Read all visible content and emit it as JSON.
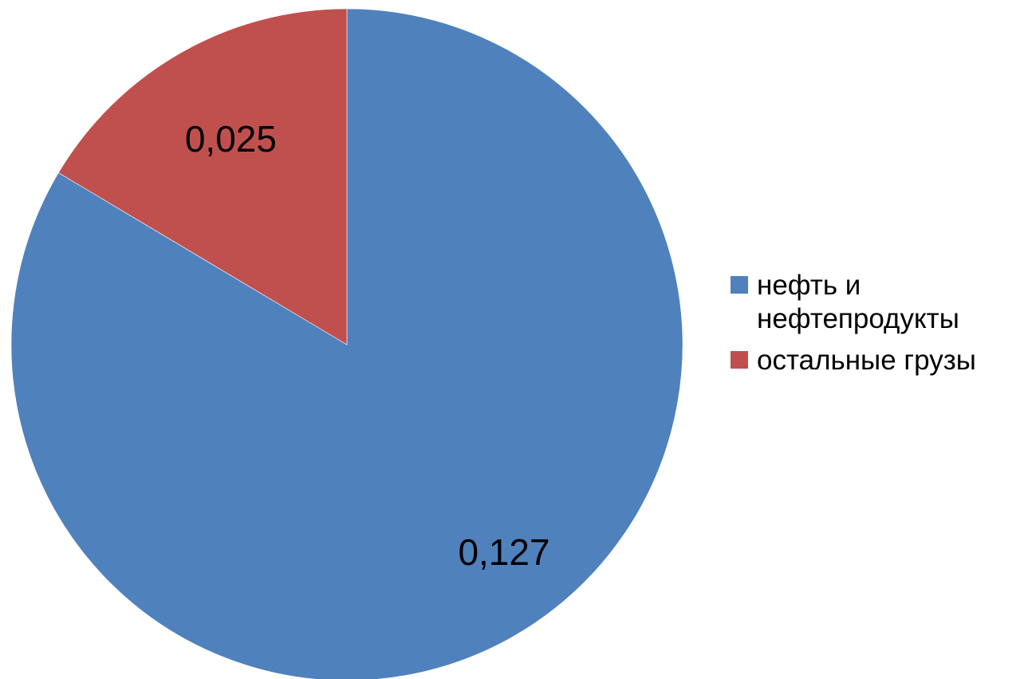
{
  "chart_data": {
    "type": "pie",
    "categories": [
      "нефть и нефтепродукты",
      "остальные грузы"
    ],
    "values": [
      0.127,
      0.025
    ],
    "data_labels": [
      "0,127",
      "0,025"
    ],
    "colors": [
      "#4F81BD",
      "#C0504D"
    ],
    "title": "",
    "legend_position": "right"
  }
}
